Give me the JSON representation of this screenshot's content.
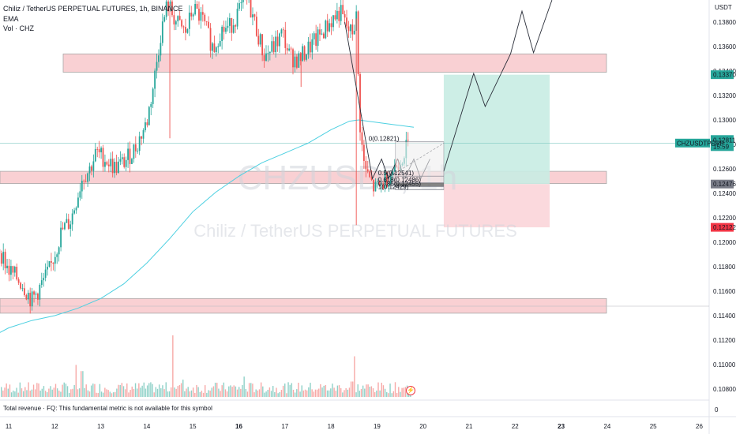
{
  "header": {
    "title": "Chiliz / TetherUS PERPETUAL FUTURES, 1h, BINANCE",
    "indicator_1": "EMA",
    "indicator_2": "Vol · CHZ"
  },
  "watermark": {
    "ticker": "CHZUSDT, 1h",
    "name": "Chiliz / TetherUS PERPETUAL FUTURES"
  },
  "footer": {
    "note": "Total revenue · FQ: This fundamental metric is not available for this symbol",
    "zero_label": "0"
  },
  "alert_icon": {
    "glyph": "⚡",
    "name": "alert-icon"
  },
  "colors": {
    "up": "#26a69a",
    "down": "#ef5350",
    "ema": "#4dd0e1",
    "zone_fill": "#f8c8cc",
    "zone_border": "#9a9a9a",
    "target_fill": "#c8ece3",
    "stop_fill": "#fbd5d9",
    "price_tag": "#26a69a",
    "target_tag": "#26a69a",
    "stop_tag": "#f23645",
    "entry_tag": "#787b86"
  },
  "chart_data": {
    "type": "candlestick",
    "symbol": "CHZUSDTPERP",
    "timeframe": "1h",
    "exchange": "BINANCE",
    "y_axis": {
      "unit": "USDT",
      "min": 0.1068,
      "max": 0.1398,
      "ticks": [
        "0.13800",
        "0.13600",
        "0.13400",
        "0.13200",
        "0.13000",
        "0.12800",
        "0.12600",
        "0.12400",
        "0.12200",
        "0.12000",
        "0.11800",
        "0.11600",
        "0.11400",
        "0.11200",
        "0.11000",
        "0.10800"
      ]
    },
    "x_axis": {
      "tick_labels": [
        "11",
        "12",
        "13",
        "14",
        "15",
        "16",
        "17",
        "18",
        "19",
        "20",
        "21",
        "22",
        "23",
        "24",
        "25",
        "26"
      ],
      "bold_labels": [
        "16",
        "23"
      ]
    },
    "price_labels": {
      "current": {
        "symbol": "CHZUSDTPERP",
        "price": "0.12811",
        "countdown": "15:59",
        "value": 0.12811
      },
      "target": {
        "price": "0.13370",
        "value": 0.1337
      },
      "entry": {
        "price": "0.12476",
        "value": 0.12476
      },
      "stop": {
        "price": "0.12122",
        "value": 0.12122
      }
    },
    "zones": [
      {
        "label": "resistance",
        "top": 0.1354,
        "bottom": 0.1339
      },
      {
        "label": "support",
        "top": 0.1258,
        "bottom": 0.1248
      },
      {
        "label": "demand",
        "top": 0.1154,
        "bottom": 0.1142
      }
    ],
    "long_position": {
      "entry": 0.12476,
      "target": 0.1337,
      "stop": 0.12122,
      "start_day": 20.45,
      "end_day": 22.75
    },
    "fib_levels": [
      {
        "label": "0(0.12821)",
        "value": 0.12821
      },
      {
        "label": "0.5(0.12541)",
        "value": 0.12541
      },
      {
        "label": "0.618(0.12486)",
        "value": 0.12486
      },
      {
        "label": "0.786(0.12455)",
        "value": 0.12455
      },
      {
        "label": "1(0.12429)",
        "value": 0.12429
      }
    ],
    "projection_path": [
      [
        20.45,
        0.1258
      ],
      [
        21.1,
        0.1338
      ],
      [
        21.35,
        0.1311
      ],
      [
        21.9,
        0.1354
      ],
      [
        22.15,
        0.1389
      ],
      [
        22.4,
        0.1355
      ],
      [
        22.8,
        0.1398
      ]
    ],
    "drawn_path": [
      [
        18.3,
        0.138
      ],
      [
        18.9,
        0.1252
      ],
      [
        19.1,
        0.1268
      ],
      [
        19.25,
        0.1252
      ],
      [
        19.45,
        0.1268
      ],
      [
        19.6,
        0.1252
      ],
      [
        19.8,
        0.1268
      ],
      [
        19.95,
        0.1252
      ],
      [
        20.15,
        0.1268
      ]
    ],
    "ema_path": [
      [
        10.6,
        0.1122
      ],
      [
        11.0,
        0.113
      ],
      [
        11.5,
        0.1136
      ],
      [
        12.0,
        0.114
      ],
      [
        12.5,
        0.1146
      ],
      [
        13.0,
        0.1154
      ],
      [
        13.5,
        0.1166
      ],
      [
        14.0,
        0.1183
      ],
      [
        14.5,
        0.1203
      ],
      [
        15.0,
        0.1225
      ],
      [
        15.5,
        0.1241
      ],
      [
        16.0,
        0.1254
      ],
      [
        16.5,
        0.1265
      ],
      [
        17.0,
        0.1273
      ],
      [
        17.5,
        0.1281
      ],
      [
        18.0,
        0.1292
      ],
      [
        18.4,
        0.1299
      ],
      [
        18.6,
        0.13
      ],
      [
        19.0,
        0.1298
      ],
      [
        19.4,
        0.1296
      ],
      [
        19.8,
        0.1294
      ]
    ],
    "candles_anchor": [
      [
        10.55,
        0.1211
      ],
      [
        10.8,
        0.1194
      ],
      [
        11.0,
        0.1177
      ],
      [
        11.3,
        0.1166
      ],
      [
        11.5,
        0.1152
      ],
      [
        11.65,
        0.1161
      ],
      [
        11.9,
        0.1178
      ],
      [
        12.15,
        0.1209
      ],
      [
        12.35,
        0.1218
      ],
      [
        12.6,
        0.1253
      ],
      [
        12.75,
        0.1259
      ],
      [
        12.9,
        0.1273
      ],
      [
        13.1,
        0.1268
      ],
      [
        13.3,
        0.1261
      ],
      [
        13.5,
        0.1265
      ],
      [
        13.75,
        0.1277
      ],
      [
        14.0,
        0.1298
      ],
      [
        14.15,
        0.133
      ],
      [
        14.3,
        0.137
      ],
      [
        14.45,
        0.1395
      ],
      [
        14.65,
        0.1379
      ],
      [
        14.85,
        0.1371
      ],
      [
        15.0,
        0.1391
      ],
      [
        15.2,
        0.1382
      ],
      [
        15.45,
        0.1358
      ],
      [
        15.6,
        0.1373
      ],
      [
        15.8,
        0.1376
      ],
      [
        16.0,
        0.1389
      ],
      [
        16.2,
        0.1398
      ],
      [
        16.4,
        0.1372
      ],
      [
        16.55,
        0.1352
      ],
      [
        16.75,
        0.1359
      ],
      [
        16.95,
        0.1371
      ],
      [
        17.1,
        0.1352
      ],
      [
        17.3,
        0.1349
      ],
      [
        17.5,
        0.1358
      ],
      [
        17.7,
        0.1366
      ],
      [
        17.9,
        0.1376
      ],
      [
        18.05,
        0.1383
      ],
      [
        18.2,
        0.1388
      ],
      [
        18.35,
        0.1375
      ],
      [
        18.45,
        0.137
      ],
      [
        18.55,
        0.1384
      ],
      [
        18.62,
        0.1302
      ],
      [
        18.7,
        0.1266
      ],
      [
        18.8,
        0.1254
      ],
      [
        18.95,
        0.1243
      ],
      [
        19.1,
        0.1247
      ],
      [
        19.3,
        0.1257
      ],
      [
        19.5,
        0.1268
      ],
      [
        19.7,
        0.1281
      ]
    ],
    "volume_scale": {
      "max_bar_units": 100
    },
    "volume_spikes": [
      {
        "day": 12.45,
        "value": 52
      },
      {
        "day": 12.58,
        "value": 42
      },
      {
        "day": 14.55,
        "value": 100
      },
      {
        "day": 14.78,
        "value": 28
      },
      {
        "day": 16.1,
        "value": 33
      },
      {
        "day": 18.5,
        "value": 66
      },
      {
        "day": 18.45,
        "value": 25
      }
    ]
  }
}
